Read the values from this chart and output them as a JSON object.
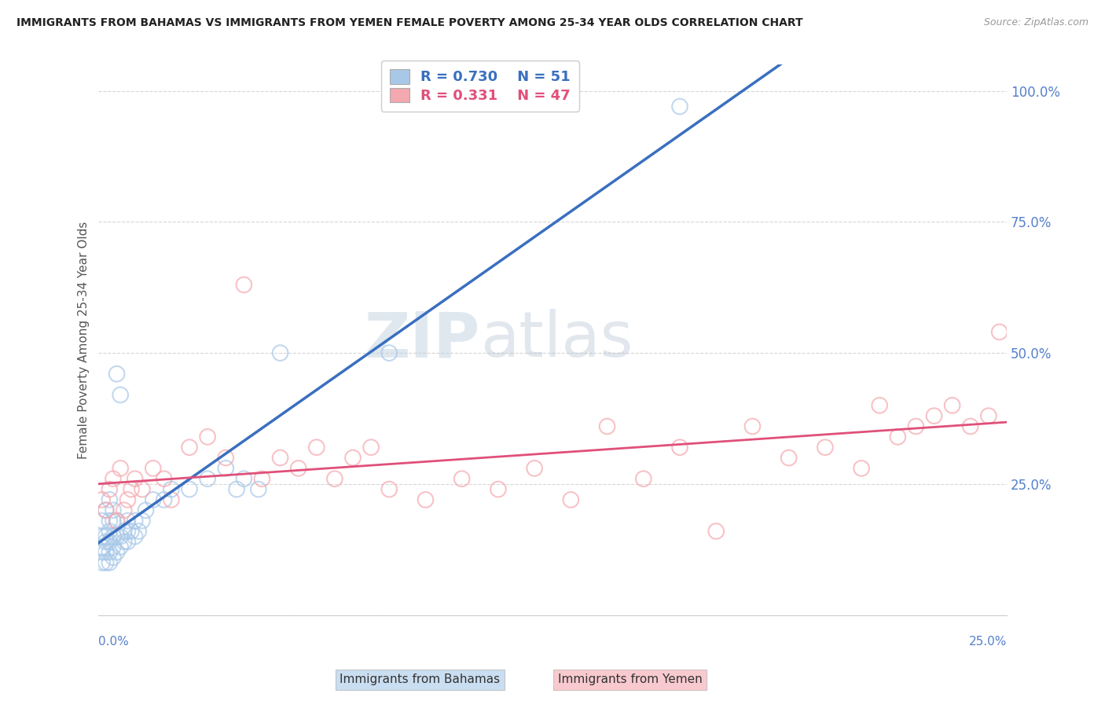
{
  "title": "IMMIGRANTS FROM BAHAMAS VS IMMIGRANTS FROM YEMEN FEMALE POVERTY AMONG 25-34 YEAR OLDS CORRELATION CHART",
  "source": "Source: ZipAtlas.com",
  "ylabel": "Female Poverty Among 25-34 Year Olds",
  "xlim": [
    0,
    0.25
  ],
  "ylim": [
    0.0,
    1.05
  ],
  "ytick_values": [
    0.0,
    0.25,
    0.5,
    0.75,
    1.0
  ],
  "legend_blue_r": "0.730",
  "legend_blue_n": "51",
  "legend_pink_r": "0.331",
  "legend_pink_n": "47",
  "legend_blue_label": "Immigrants from Bahamas",
  "legend_pink_label": "Immigrants from Yemen",
  "blue_color": "#a8c8e8",
  "pink_color": "#f4a8b0",
  "blue_edge_color": "#7aaed0",
  "pink_edge_color": "#e888a0",
  "line_blue_color": "#3a6fbf",
  "line_pink_color": "#e0507a",
  "tick_color": "#5580cc",
  "watermark_zip": "ZIP",
  "watermark_atlas": "atlas",
  "background_color": "#ffffff",
  "grid_color": "#cccccc",
  "bahamas_x": [
    0.001,
    0.001,
    0.001,
    0.001,
    0.001,
    0.002,
    0.002,
    0.002,
    0.002,
    0.002,
    0.003,
    0.003,
    0.003,
    0.003,
    0.003,
    0.003,
    0.004,
    0.004,
    0.004,
    0.004,
    0.004,
    0.005,
    0.005,
    0.005,
    0.005,
    0.006,
    0.006,
    0.006,
    0.007,
    0.007,
    0.008,
    0.008,
    0.008,
    0.009,
    0.01,
    0.01,
    0.011,
    0.012,
    0.013,
    0.015,
    0.018,
    0.02,
    0.025,
    0.03,
    0.035,
    0.038,
    0.04,
    0.044,
    0.05,
    0.08,
    0.16
  ],
  "bahamas_y": [
    0.1,
    0.12,
    0.13,
    0.15,
    0.18,
    0.1,
    0.12,
    0.14,
    0.15,
    0.2,
    0.1,
    0.12,
    0.14,
    0.16,
    0.18,
    0.22,
    0.11,
    0.13,
    0.15,
    0.18,
    0.2,
    0.12,
    0.15,
    0.18,
    0.46,
    0.13,
    0.15,
    0.42,
    0.14,
    0.16,
    0.14,
    0.16,
    0.18,
    0.16,
    0.15,
    0.18,
    0.16,
    0.18,
    0.2,
    0.22,
    0.22,
    0.24,
    0.24,
    0.26,
    0.28,
    0.24,
    0.26,
    0.24,
    0.5,
    0.5,
    0.97
  ],
  "yemen_x": [
    0.001,
    0.002,
    0.003,
    0.004,
    0.005,
    0.006,
    0.007,
    0.008,
    0.009,
    0.01,
    0.012,
    0.015,
    0.018,
    0.02,
    0.025,
    0.03,
    0.035,
    0.04,
    0.045,
    0.05,
    0.055,
    0.06,
    0.065,
    0.07,
    0.075,
    0.08,
    0.09,
    0.1,
    0.11,
    0.12,
    0.13,
    0.14,
    0.15,
    0.16,
    0.17,
    0.18,
    0.19,
    0.2,
    0.21,
    0.215,
    0.22,
    0.225,
    0.23,
    0.235,
    0.24,
    0.245,
    0.248
  ],
  "yemen_y": [
    0.22,
    0.2,
    0.24,
    0.26,
    0.18,
    0.28,
    0.2,
    0.22,
    0.24,
    0.26,
    0.24,
    0.28,
    0.26,
    0.22,
    0.32,
    0.34,
    0.3,
    0.63,
    0.26,
    0.3,
    0.28,
    0.32,
    0.26,
    0.3,
    0.32,
    0.24,
    0.22,
    0.26,
    0.24,
    0.28,
    0.22,
    0.36,
    0.26,
    0.32,
    0.16,
    0.36,
    0.3,
    0.32,
    0.28,
    0.4,
    0.34,
    0.36,
    0.38,
    0.4,
    0.36,
    0.38,
    0.54
  ]
}
